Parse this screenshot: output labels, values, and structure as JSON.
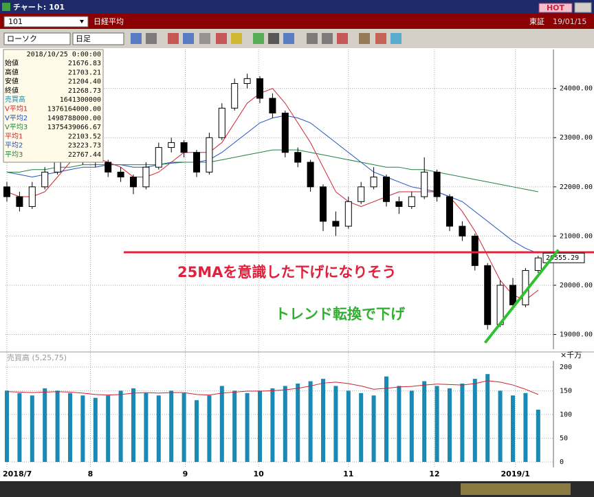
{
  "window": {
    "title": "チャート: 101",
    "badge": "HOT"
  },
  "toolbar": {
    "code": "101",
    "name": "日経平均",
    "market": "東証",
    "date": "19/01/15",
    "chart_type": "ローソク",
    "period": "日足"
  },
  "info": {
    "datetime": "2018/10/25 0:00:00",
    "rows": [
      {
        "label": "始値",
        "value": "21676.83",
        "color": "#000000"
      },
      {
        "label": "高値",
        "value": "21703.21",
        "color": "#000000"
      },
      {
        "label": "安値",
        "value": "21204.40",
        "color": "#000000"
      },
      {
        "label": "終値",
        "value": "21268.73",
        "color": "#000000"
      },
      {
        "label": "売買高",
        "value": "1641300000",
        "color": "#1a8ab4"
      },
      {
        "label": "V平均1",
        "value": "1376164000.00",
        "color": "#d02030"
      },
      {
        "label": "V平均2",
        "value": "1498788000.00",
        "color": "#2050c0"
      },
      {
        "label": "V平均3",
        "value": "1375439066.67",
        "color": "#208040"
      },
      {
        "label": "平均1",
        "value": "22103.52",
        "color": "#d02030"
      },
      {
        "label": "平均2",
        "value": "23223.73",
        "color": "#2050c0"
      },
      {
        "label": "平均3",
        "value": "22767.44",
        "color": "#208040"
      }
    ]
  },
  "chart_data": {
    "type": "candlestick",
    "open": [
      22000,
      21800,
      21600,
      22000,
      22300,
      22600,
      22700,
      22550,
      22500,
      22300,
      22200,
      22000,
      22400,
      22800,
      22900,
      22700,
      22300,
      23000,
      23600,
      24100,
      24200,
      23800,
      23500,
      22700,
      22500,
      22000,
      21300,
      21200,
      21700,
      22000,
      22200,
      21700,
      21600,
      21800,
      22300,
      21800,
      21200,
      21000,
      20400,
      19200,
      20000,
      19600,
      20300
    ],
    "high": [
      22100,
      21900,
      22100,
      22400,
      22700,
      22800,
      22750,
      22650,
      22550,
      22400,
      22250,
      22500,
      22900,
      23000,
      22950,
      22750,
      23100,
      23700,
      24200,
      24300,
      24250,
      23900,
      23550,
      22800,
      22550,
      22050,
      21500,
      21800,
      22100,
      22400,
      22250,
      21800,
      21900,
      22600,
      22350,
      21850,
      21300,
      21050,
      20450,
      20100,
      20150,
      20350,
      20600
    ],
    "low": [
      21700,
      21500,
      21550,
      21950,
      22250,
      22500,
      22450,
      22400,
      22200,
      22100,
      21850,
      21950,
      22350,
      22700,
      22600,
      22200,
      22250,
      22950,
      23550,
      24000,
      23700,
      23400,
      22600,
      22400,
      21900,
      21100,
      21000,
      21150,
      21650,
      21950,
      21600,
      21450,
      21550,
      21750,
      21700,
      21100,
      20900,
      20300,
      19100,
      19150,
      19500,
      19550,
      20250
    ],
    "close": [
      21800,
      21600,
      22000,
      22300,
      22600,
      22700,
      22550,
      22500,
      22300,
      22200,
      22000,
      22400,
      22800,
      22900,
      22700,
      22300,
      23000,
      23600,
      24100,
      24200,
      23800,
      23500,
      22700,
      22500,
      22000,
      21300,
      21200,
      21700,
      22000,
      22200,
      21700,
      21600,
      21800,
      22300,
      21800,
      21200,
      21000,
      20400,
      19200,
      20000,
      19600,
      20300,
      20555.29
    ],
    "up_color": "#ffffff",
    "down_color": "#000000",
    "moving_averages": [
      {
        "color": "#d02030",
        "values": [
          21900,
          21800,
          21800,
          21900,
          22200,
          22500,
          22600,
          22600,
          22500,
          22400,
          22200,
          22200,
          22300,
          22500,
          22700,
          22700,
          22700,
          22900,
          23300,
          23700,
          23900,
          24000,
          23700,
          23300,
          22900,
          22400,
          21900,
          21700,
          21600,
          21700,
          21800,
          21900,
          21900,
          21900,
          21900,
          21800,
          21500,
          21100,
          20600,
          20100,
          19800,
          19700,
          19900
        ]
      },
      {
        "color": "#2050c0",
        "values": [
          22300,
          22250,
          22200,
          22250,
          22300,
          22350,
          22400,
          22400,
          22450,
          22450,
          22400,
          22400,
          22450,
          22500,
          22500,
          22500,
          22550,
          22700,
          22900,
          23100,
          23300,
          23400,
          23450,
          23400,
          23300,
          23100,
          22900,
          22700,
          22500,
          22300,
          22200,
          22100,
          22000,
          21950,
          21900,
          21800,
          21700,
          21500,
          21300,
          21100,
          20900,
          20750,
          20650
        ]
      },
      {
        "color": "#208040",
        "values": [
          22300,
          22300,
          22350,
          22350,
          22400,
          22400,
          22450,
          22450,
          22450,
          22450,
          22450,
          22450,
          22450,
          22480,
          22500,
          22500,
          22500,
          22550,
          22600,
          22650,
          22700,
          22750,
          22750,
          22750,
          22700,
          22650,
          22600,
          22550,
          22500,
          22450,
          22400,
          22400,
          22350,
          22350,
          22300,
          22250,
          22200,
          22150,
          22100,
          22050,
          22000,
          21950,
          21900
        ]
      }
    ],
    "ylim": [
      18700,
      24750
    ],
    "yticks": [
      {
        "value": 19000,
        "label": "19000.00"
      },
      {
        "value": 20000,
        "label": "20000.00"
      },
      {
        "value": 21000,
        "label": "21000.00"
      },
      {
        "value": 22000,
        "label": "22000.00"
      },
      {
        "value": 23000,
        "label": "23000.00"
      },
      {
        "value": 24000,
        "label": "24000.00"
      }
    ],
    "xticks": [
      {
        "value": 0,
        "label": "2018/7"
      },
      {
        "value": 6.6,
        "label": "8"
      },
      {
        "value": 14.1,
        "label": "9"
      },
      {
        "value": 19.9,
        "label": "10"
      },
      {
        "value": 27,
        "label": "11"
      },
      {
        "value": 33.8,
        "label": "12"
      },
      {
        "value": 40.2,
        "label": "2019/1"
      }
    ],
    "grid": true,
    "reference_line": {
      "value": 20670,
      "color": "#e8203c"
    },
    "trend_line": {
      "x": [
        37.8,
        43.6
      ],
      "y": [
        18830,
        20720
      ],
      "color": "#30c030"
    },
    "annotations": [
      {
        "text": "25MAを意識した下げになりそう",
        "color": "#e0203c"
      },
      {
        "text": "トレンド転換で下げ",
        "color": "#30b030"
      }
    ],
    "volume": {
      "label": "売買高 (5,25,75)",
      "unit": "×千万",
      "color": "#1a8ab4",
      "values": [
        150,
        145,
        140,
        155,
        150,
        145,
        140,
        135,
        140,
        150,
        155,
        145,
        140,
        150,
        145,
        130,
        140,
        160,
        150,
        145,
        150,
        155,
        160,
        165,
        170,
        175,
        160,
        150,
        145,
        140,
        180,
        160,
        150,
        170,
        160,
        155,
        165,
        175,
        185,
        150,
        140,
        145,
        110
      ],
      "ma": {
        "color": "#d02030",
        "values": [
          148,
          147,
          146,
          147,
          148,
          147,
          145,
          142,
          141,
          142,
          145,
          146,
          145,
          146,
          146,
          142,
          141,
          145,
          147,
          149,
          149,
          150,
          152,
          155,
          160,
          166,
          168,
          165,
          160,
          153,
          155,
          158,
          159,
          162,
          164,
          163,
          162,
          165,
          171,
          168,
          162,
          153,
          142
        ]
      },
      "ylim": [
        0,
        220
      ],
      "yticks": [
        0,
        50,
        100,
        150,
        200
      ]
    }
  }
}
